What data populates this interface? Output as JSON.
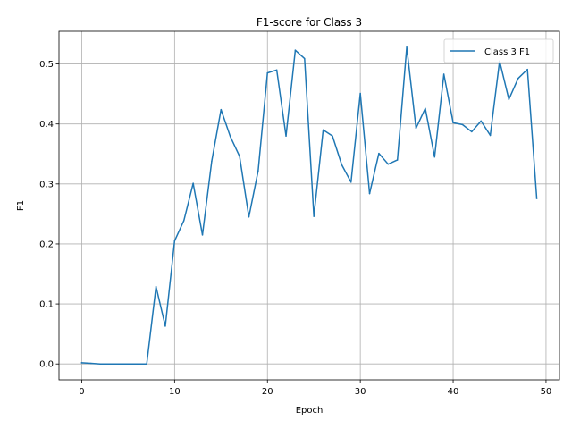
{
  "chart_data": {
    "type": "line",
    "title": "F1-score for Class 3",
    "xlabel": "Epoch",
    "ylabel": "F1",
    "xlim": [
      -2.45,
      51.45
    ],
    "ylim": [
      -0.0265,
      0.5545
    ],
    "xticks": [
      0,
      10,
      20,
      30,
      40,
      50
    ],
    "yticks": [
      0.0,
      0.1,
      0.2,
      0.3,
      0.4,
      0.5
    ],
    "ytick_labels": [
      "0.0",
      "0.1",
      "0.2",
      "0.3",
      "0.4",
      "0.5"
    ],
    "grid": true,
    "legend": {
      "position": "top-right"
    },
    "series": [
      {
        "name": "Class 3 F1",
        "color": "#1f77b4",
        "x": [
          0,
          1,
          2,
          3,
          4,
          5,
          6,
          7,
          8,
          9,
          10,
          11,
          12,
          13,
          14,
          15,
          16,
          17,
          18,
          19,
          20,
          21,
          22,
          23,
          24,
          25,
          26,
          27,
          28,
          29,
          30,
          31,
          32,
          33,
          34,
          35,
          36,
          37,
          38,
          39,
          40,
          41,
          42,
          43,
          44,
          45,
          46,
          47,
          48,
          49
        ],
        "values": [
          0.002,
          0.001,
          0,
          0,
          0,
          0,
          0,
          0,
          0.129,
          0.063,
          0.205,
          0.239,
          0.301,
          0.215,
          0.338,
          0.424,
          0.379,
          0.346,
          0.245,
          0.322,
          0.485,
          0.49,
          0.38,
          0.523,
          0.509,
          0.246,
          0.39,
          0.38,
          0.332,
          0.303,
          0.451,
          0.284,
          0.351,
          0.333,
          0.34,
          0.528,
          0.393,
          0.426,
          0.345,
          0.483,
          0.402,
          0.399,
          0.387,
          0.405,
          0.381,
          0.505,
          0.441,
          0.476,
          0.491,
          0.276
        ]
      }
    ]
  }
}
